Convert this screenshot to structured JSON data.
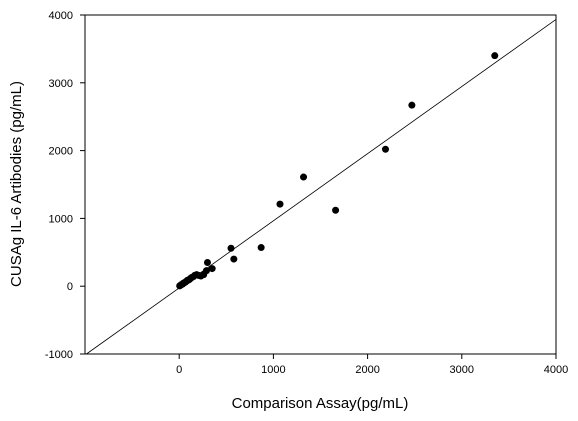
{
  "chart_data": {
    "type": "scatter",
    "title": "",
    "xlabel": "Comparison Assay(pg/mL)",
    "ylabel": "CUSAg IL-6 Artibodies (pg/mL)",
    "xlim": [
      -1000,
      4000
    ],
    "ylim": [
      -1000,
      4000
    ],
    "xticks": [
      "0",
      "1000",
      "2000",
      "3000",
      "4000"
    ],
    "yticks": [
      "-1000",
      "0",
      "1000",
      "2000",
      "3000",
      "4000"
    ],
    "grid": false,
    "legend": "none",
    "marker_color": "#000000",
    "points": [
      {
        "x": 5,
        "y": 5
      },
      {
        "x": 15,
        "y": 15
      },
      {
        "x": 25,
        "y": 25
      },
      {
        "x": 35,
        "y": 30
      },
      {
        "x": 45,
        "y": 45
      },
      {
        "x": 55,
        "y": 50
      },
      {
        "x": 65,
        "y": 60
      },
      {
        "x": 75,
        "y": 70
      },
      {
        "x": 85,
        "y": 85
      },
      {
        "x": 95,
        "y": 90
      },
      {
        "x": 110,
        "y": 100
      },
      {
        "x": 120,
        "y": 115
      },
      {
        "x": 135,
        "y": 130
      },
      {
        "x": 150,
        "y": 140
      },
      {
        "x": 165,
        "y": 160
      },
      {
        "x": 185,
        "y": 170
      },
      {
        "x": 205,
        "y": 160
      },
      {
        "x": 230,
        "y": 150
      },
      {
        "x": 260,
        "y": 170
      },
      {
        "x": 290,
        "y": 230
      },
      {
        "x": 300,
        "y": 350
      },
      {
        "x": 350,
        "y": 260
      },
      {
        "x": 550,
        "y": 560
      },
      {
        "x": 580,
        "y": 400
      },
      {
        "x": 870,
        "y": 570
      },
      {
        "x": 1070,
        "y": 1210
      },
      {
        "x": 1320,
        "y": 1610
      },
      {
        "x": 1660,
        "y": 1120
      },
      {
        "x": 2190,
        "y": 2020
      },
      {
        "x": 2470,
        "y": 2670
      },
      {
        "x": 3350,
        "y": 3400
      }
    ],
    "fit_line": {
      "slope": 0.99,
      "intercept": -25
    }
  }
}
